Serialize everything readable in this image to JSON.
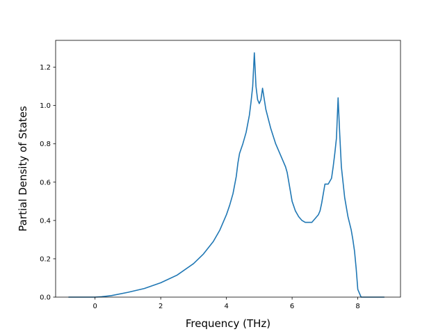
{
  "chart_data": {
    "type": "line",
    "title": "",
    "xlabel": "Frequency (THz)",
    "ylabel": "Partial Density of States",
    "xlim": [
      -1.2,
      9.3
    ],
    "ylim": [
      0.0,
      1.34
    ],
    "xticks": [
      0,
      2,
      4,
      6,
      8
    ],
    "xtick_labels": [
      "0",
      "2",
      "4",
      "6",
      "8"
    ],
    "yticks": [
      0.0,
      0.2,
      0.4,
      0.6,
      0.8,
      1.0,
      1.2
    ],
    "ytick_labels": [
      "0.0",
      "0.2",
      "0.4",
      "0.6",
      "0.8",
      "1.0",
      "1.2"
    ],
    "grid": false,
    "legend": "none",
    "series": [
      {
        "color": "#1f77b4",
        "x": [
          -0.8,
          -0.4,
          0.0,
          0.2,
          0.5,
          1.0,
          1.5,
          2.0,
          2.5,
          3.0,
          3.3,
          3.6,
          3.8,
          4.0,
          4.1,
          4.2,
          4.3,
          4.35,
          4.4,
          4.5,
          4.6,
          4.7,
          4.75,
          4.8,
          4.85,
          4.9,
          4.95,
          5.0,
          5.05,
          5.1,
          5.2,
          5.35,
          5.5,
          5.6,
          5.7,
          5.75,
          5.8,
          5.85,
          5.9,
          6.0,
          6.1,
          6.2,
          6.3,
          6.4,
          6.45,
          6.5,
          6.6,
          6.7,
          6.75,
          6.8,
          6.85,
          6.9,
          7.0,
          7.1,
          7.2,
          7.25,
          7.3,
          7.35,
          7.4,
          7.45,
          7.5,
          7.6,
          7.7,
          7.8,
          7.85,
          7.9,
          7.95,
          8.0,
          8.1,
          8.3,
          8.5,
          8.8
        ],
        "y": [
          0.0,
          0.0,
          0.0,
          0.002,
          0.008,
          0.025,
          0.045,
          0.075,
          0.115,
          0.175,
          0.225,
          0.29,
          0.35,
          0.43,
          0.48,
          0.54,
          0.63,
          0.7,
          0.75,
          0.8,
          0.86,
          0.95,
          1.02,
          1.1,
          1.275,
          1.1,
          1.03,
          1.01,
          1.03,
          1.09,
          0.98,
          0.88,
          0.8,
          0.76,
          0.72,
          0.7,
          0.68,
          0.65,
          0.6,
          0.5,
          0.45,
          0.42,
          0.4,
          0.39,
          0.39,
          0.39,
          0.39,
          0.41,
          0.42,
          0.43,
          0.45,
          0.49,
          0.59,
          0.59,
          0.62,
          0.68,
          0.75,
          0.83,
          1.04,
          0.85,
          0.68,
          0.52,
          0.42,
          0.35,
          0.3,
          0.24,
          0.15,
          0.04,
          0.0,
          0.0,
          0.0,
          0.0
        ]
      }
    ]
  }
}
